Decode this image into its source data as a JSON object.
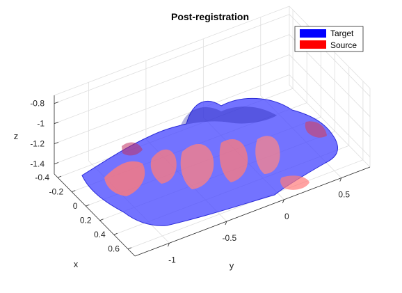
{
  "chart_data": {
    "type": "surface3d",
    "title": "Post-registration",
    "xlabel": "x",
    "ylabel": "y",
    "zlabel": "z",
    "xlim": [
      -0.45,
      0.7
    ],
    "ylim": [
      -1.3,
      0.75
    ],
    "zlim": [
      -1.5,
      -0.72
    ],
    "xticks": [
      -0.4,
      -0.2,
      0,
      0.2,
      0.4,
      0.6
    ],
    "xtick_labels": [
      "-0.4",
      "-0.2",
      "0",
      "0.2",
      "0.4",
      "0.6"
    ],
    "yticks": [
      -1,
      -0.5,
      0,
      0.5
    ],
    "ytick_labels": [
      "-1",
      "-0.5",
      "0",
      "0.5"
    ],
    "zticks": [
      -1.4,
      -1.2,
      -1,
      -0.8
    ],
    "ztick_labels": [
      "-1.4",
      "-1.2",
      "-1",
      "-0.8"
    ],
    "grid": true,
    "legend_position": "top-right",
    "series": [
      {
        "name": "Target",
        "color": "#0000ff"
      },
      {
        "name": "Source",
        "color": "#ff0000"
      }
    ]
  }
}
